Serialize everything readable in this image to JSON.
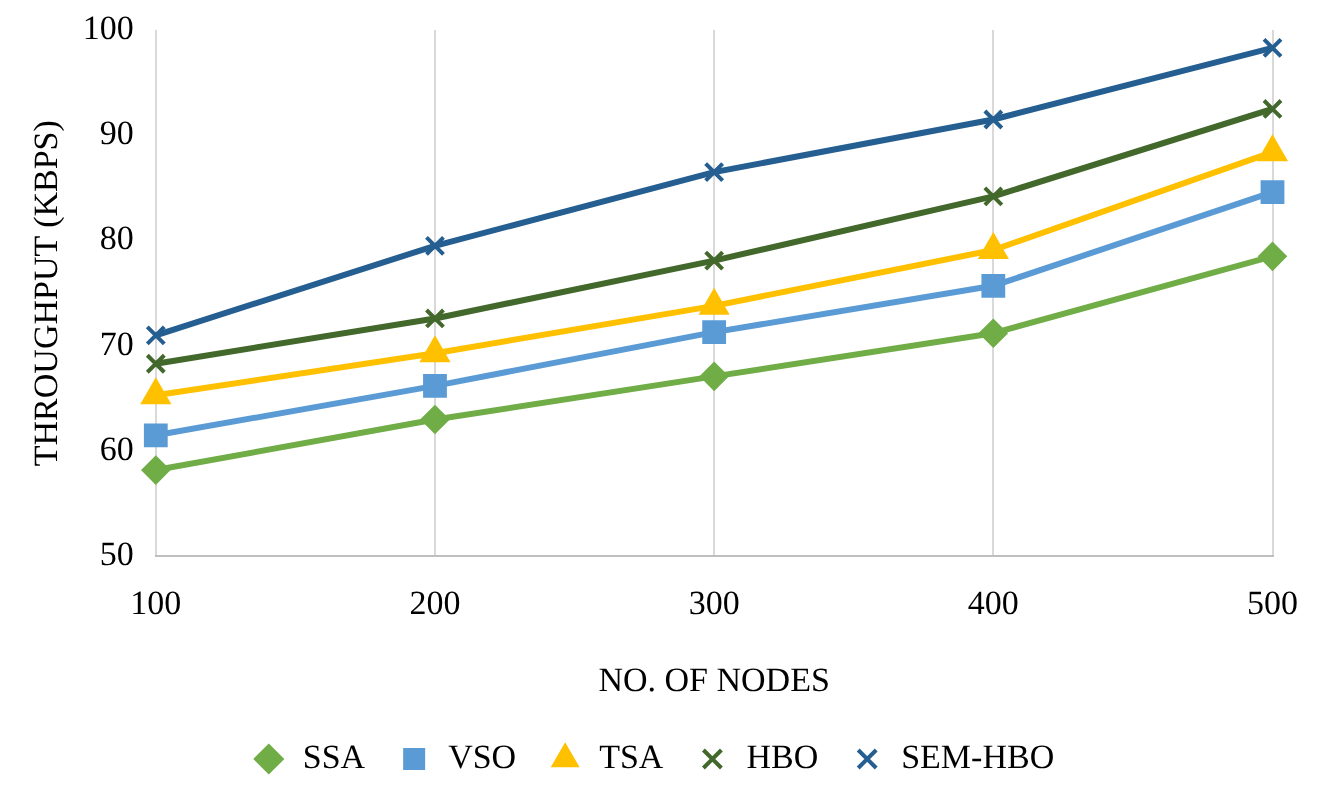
{
  "chart_data": {
    "type": "line",
    "xlabel": "NO. OF NODES",
    "ylabel": "THROUGHPUT (KBPS)",
    "categories": [
      "100",
      "200",
      "300",
      "400",
      "500"
    ],
    "ylim": [
      50,
      100
    ],
    "yticks": [
      50,
      60,
      70,
      80,
      90,
      100
    ],
    "grid": "x",
    "legend": "bottom",
    "line_style": "solid",
    "series": [
      {
        "name": "SSA",
        "color": "#70ad47",
        "marker": "diamond",
        "values": [
          58.2,
          63,
          67.1,
          71.2,
          78.5
        ]
      },
      {
        "name": "VSO",
        "color": "#5b9bd5",
        "marker": "square",
        "values": [
          61.5,
          66.2,
          71.3,
          75.7,
          84.6
        ]
      },
      {
        "name": "TSA",
        "color": "#ffc000",
        "marker": "triangle",
        "values": [
          65.3,
          69.3,
          73.8,
          79.1,
          88.4
        ]
      },
      {
        "name": "HBO",
        "color": "#43682b",
        "marker": "cross",
        "values": [
          68.3,
          72.6,
          78.1,
          84.2,
          92.5
        ]
      },
      {
        "name": "SEM-HBO",
        "color": "#255e91",
        "marker": "cross",
        "values": [
          71,
          79.5,
          86.5,
          91.5,
          98.3
        ]
      }
    ]
  }
}
